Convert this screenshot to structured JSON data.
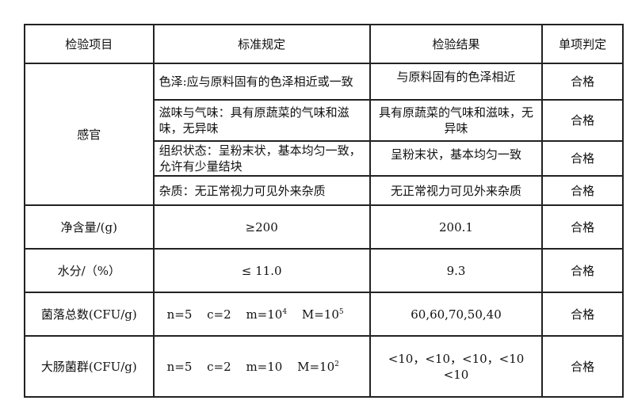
{
  "headers": [
    "检验项目",
    "标准规定",
    "检验结果",
    "单项判定"
  ],
  "sensory": {
    "label": "感官",
    "rows": [
      {
        "standard": "色泽:应与原料固有的色泽相近或一致",
        "result": "与原料固有的色泽相近",
        "verdict": "合格"
      },
      {
        "standard": "滋味与气味：具有原蔬菜的气味和滋味，无异味",
        "result": "具有原蔬菜的气味和滋味，无异味",
        "verdict": "合格"
      },
      {
        "standard": "组织状态：呈粉末状，基本均匀一致，允许有少量结块",
        "result": "呈粉末状，基本均匀一致",
        "verdict": "合格"
      },
      {
        "standard": "杂质：无正常视力可见外来杂质",
        "result": "无正常视力可见外来杂质",
        "verdict": "合格"
      }
    ]
  },
  "rows": [
    {
      "item": "净含量/(g)",
      "standard": "≥200",
      "result": "200.1",
      "verdict": "合格"
    },
    {
      "item": "水分/（%）",
      "standard": "≤ 11.0",
      "result": "9.3",
      "verdict": "合格"
    }
  ],
  "colony": {
    "item": "菌落总数(CFU/g)",
    "n": "n=5",
    "c": "c=2",
    "m": "m=10",
    "m_exp": "4",
    "M": "M=10",
    "M_exp": "5",
    "result": "60,60,70,50,40",
    "verdict": "合格"
  },
  "coliform": {
    "item": "大肠菌群(CFU/g)",
    "n": "n=5",
    "c": "c=2",
    "m": "m=10",
    "M": "M=10",
    "M_exp": "2",
    "result": "<10，<10，<10，<10 <10",
    "verdict": "合格"
  }
}
